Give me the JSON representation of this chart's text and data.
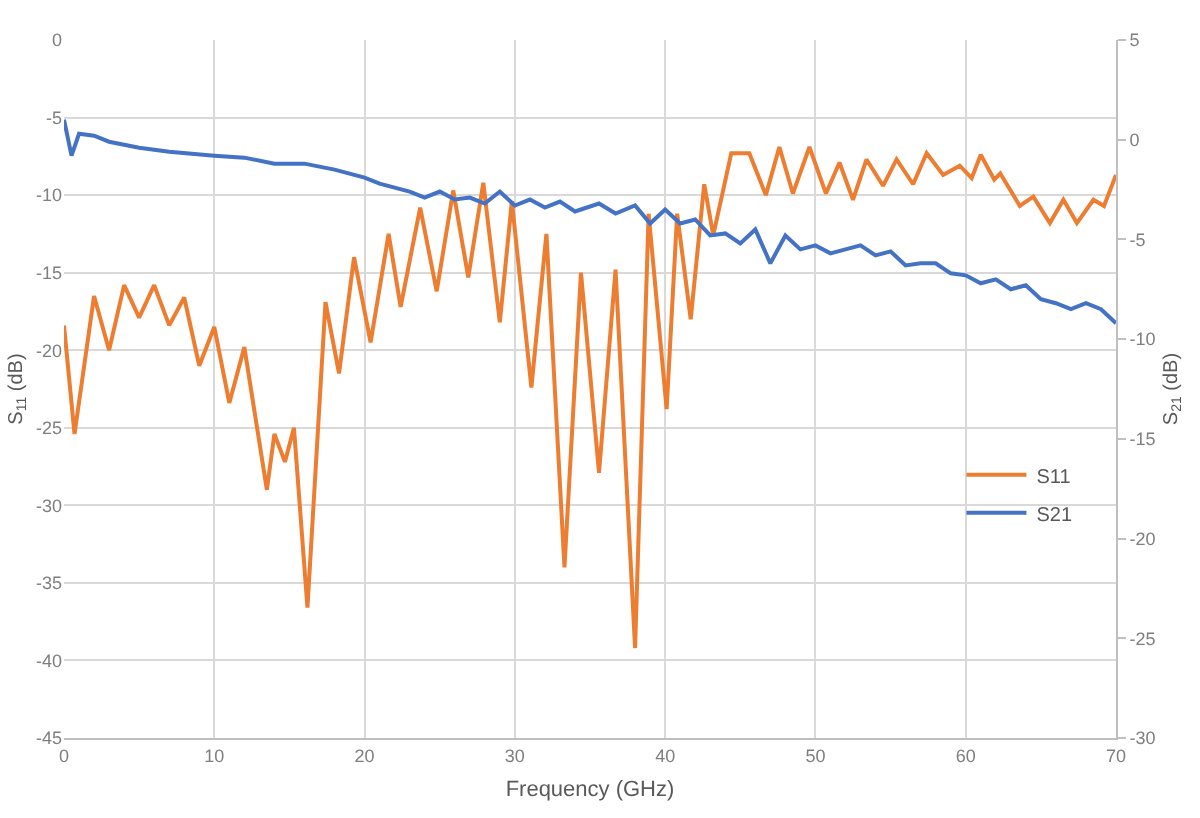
{
  "chart_data": {
    "type": "line",
    "xlabel": "Frequency (GHz)",
    "ylabel": "S$_{11}$ (dB)",
    "y2label": "S$_{21}$ (dB)",
    "xlim": [
      0,
      70
    ],
    "xticks": [
      0,
      10,
      20,
      30,
      40,
      50,
      60,
      70
    ],
    "ylim": [
      -45,
      0
    ],
    "yticks": [
      -45,
      -40,
      -35,
      -30,
      -25,
      -20,
      -15,
      -10,
      -5,
      0
    ],
    "y2lim": [
      -30,
      5
    ],
    "y2ticks": [
      -30,
      -25,
      -20,
      -15,
      -10,
      -5,
      0,
      5
    ],
    "grid": true,
    "legend": "right",
    "line_style": "solid",
    "series": [
      {
        "name": "S11",
        "color": "#ed7d31",
        "x": [
          0,
          0.7,
          2,
          3,
          4,
          5,
          6,
          7,
          8,
          9,
          10,
          11,
          12,
          13.5,
          14,
          14.7,
          15.3,
          16.2,
          17.4,
          18.3,
          19.3,
          20.4,
          21.6,
          22.4,
          23.7,
          24.8,
          25.9,
          26.9,
          27.9,
          29,
          29.8,
          31.1,
          32.1,
          33.3,
          34.4,
          35.6,
          36.7,
          38,
          38.9,
          40.1,
          40.8,
          41.7,
          42.6,
          43.2,
          44.4,
          45.6,
          46.7,
          47.6,
          48.5,
          49.6,
          50.7,
          51.6,
          52.5,
          53.4,
          54.5,
          55.4,
          56.5,
          57.4,
          58.5,
          59.6,
          60.4,
          61,
          61.9,
          62.3,
          63.6,
          64.5,
          65.6,
          66.5,
          67.4,
          68.5,
          69.2,
          70
        ],
        "values": [
          -18.4,
          -25.4,
          -16.5,
          -20,
          -15.8,
          -17.9,
          -15.8,
          -18.4,
          -16.6,
          -21,
          -18.5,
          -23.4,
          -19.8,
          -29,
          -25.4,
          -27.2,
          -25,
          -36.6,
          -16.9,
          -21.5,
          -14,
          -19.5,
          -12.5,
          -17.2,
          -10.8,
          -16.2,
          -9.7,
          -15.3,
          -9.2,
          -18.2,
          -10.4,
          -22.4,
          -12.5,
          -34,
          -15,
          -27.9,
          -14.8,
          -39.2,
          -11.2,
          -23.8,
          -11.2,
          -18,
          -9.3,
          -12.6,
          -7.3,
          -7.3,
          -10,
          -6.9,
          -9.9,
          -6.9,
          -9.9,
          -7.9,
          -10.3,
          -7.7,
          -9.4,
          -7.7,
          -9.3,
          -7.3,
          -8.7,
          -8.1,
          -8.9,
          -7.4,
          -9,
          -8.6,
          -10.7,
          -10.1,
          -11.8,
          -10.3,
          -11.8,
          -10.3,
          -10.7,
          -8.7
        ]
      },
      {
        "name": "S21",
        "color": "#4472c4",
        "axis": "y2",
        "x": [
          0,
          0.5,
          1,
          2,
          3,
          5,
          7,
          10,
          12,
          14,
          16,
          18,
          20,
          21,
          22,
          23,
          24,
          25,
          26,
          27,
          28,
          29,
          30,
          31,
          32,
          33,
          34,
          35.6,
          36.7,
          38,
          39,
          40,
          41,
          42,
          43,
          44,
          45,
          46,
          47,
          48,
          49,
          50,
          51,
          52,
          53,
          54,
          55,
          56,
          57,
          58,
          59,
          60,
          61,
          62,
          63,
          64,
          65,
          66,
          67,
          68,
          69,
          70
        ],
        "values": [
          1,
          -0.8,
          0.3,
          0.2,
          -0.1,
          -0.4,
          -0.6,
          -0.8,
          -0.9,
          -1.2,
          -1.2,
          -1.5,
          -1.9,
          -2.2,
          -2.4,
          -2.6,
          -2.9,
          -2.6,
          -3,
          -2.9,
          -3.2,
          -2.6,
          -3.3,
          -3,
          -3.4,
          -3.1,
          -3.6,
          -3.2,
          -3.7,
          -3.3,
          -4.2,
          -3.5,
          -4.2,
          -4,
          -4.8,
          -4.7,
          -5.2,
          -4.5,
          -6.2,
          -4.8,
          -5.5,
          -5.3,
          -5.7,
          -5.5,
          -5.3,
          -5.8,
          -5.6,
          -6.3,
          -6.2,
          -6.2,
          -6.7,
          -6.8,
          -7.2,
          -7,
          -7.5,
          -7.3,
          -8,
          -8.2,
          -8.5,
          -8.2,
          -8.5,
          -9.2
        ]
      }
    ]
  }
}
